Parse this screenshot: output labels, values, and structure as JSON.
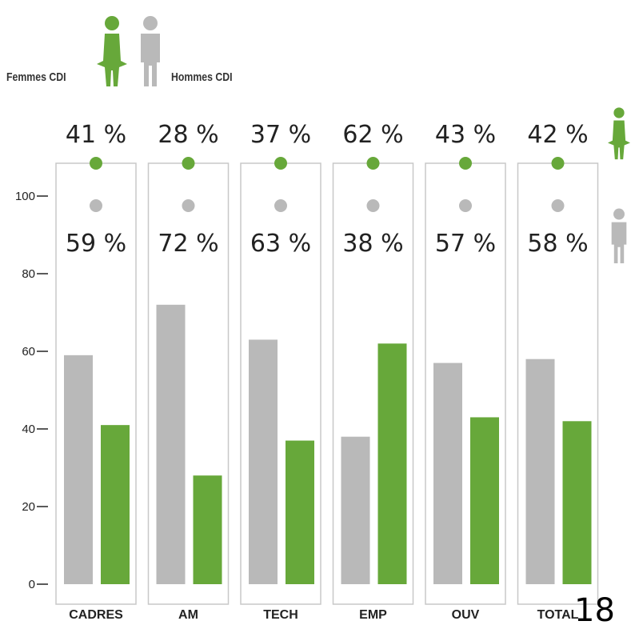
{
  "legend": {
    "women_label": "Femmes CDI",
    "men_label": "Hommes CDI",
    "women_icon": "woman-icon",
    "men_icon": "man-icon"
  },
  "colors": {
    "women": "#67a83a",
    "men": "#b9b9b9",
    "frame": "#c8c8c8"
  },
  "page_number": "18",
  "chart_data": {
    "type": "bar",
    "categories": [
      "CADRES",
      "AM",
      "TECH",
      "EMP",
      "OUV",
      "TOTAL"
    ],
    "series": [
      {
        "name": "Hommes CDI",
        "values": [
          59,
          72,
          63,
          38,
          57,
          58
        ],
        "labels": [
          "59 %",
          "72 %",
          "63 %",
          "38 %",
          "57 %",
          "58 %"
        ]
      },
      {
        "name": "Femmes CDI",
        "values": [
          41,
          28,
          37,
          62,
          43,
          42
        ],
        "labels": [
          "41 %",
          "28 %",
          "37 %",
          "62 %",
          "43 %",
          "42 %"
        ]
      }
    ],
    "yticks": [
      "0",
      "20",
      "40",
      "60",
      "80",
      "100"
    ],
    "ylim": [
      0,
      100
    ],
    "grid": false,
    "legend_position": "top-left"
  }
}
